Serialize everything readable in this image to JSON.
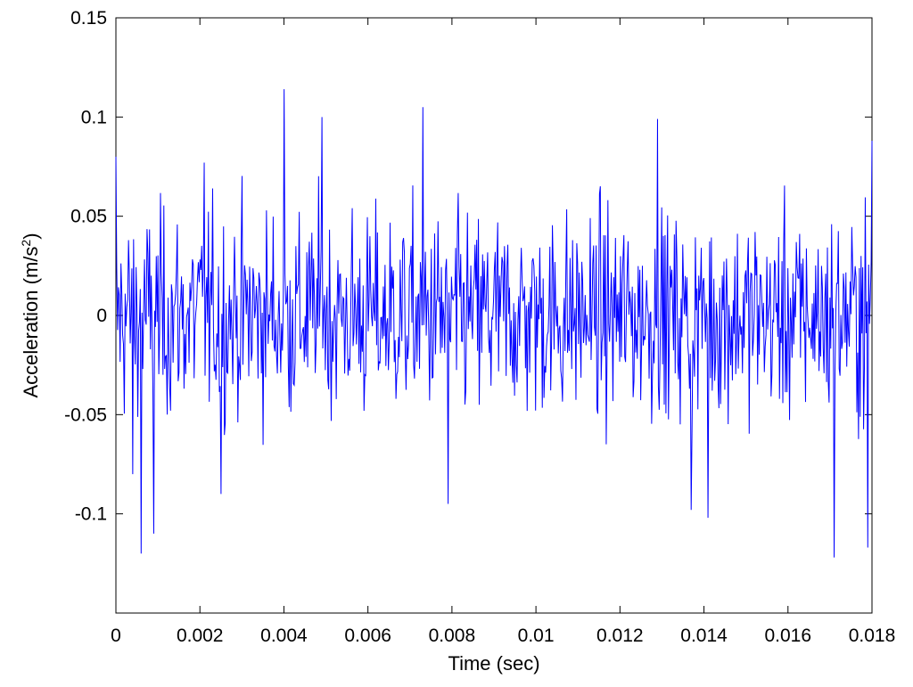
{
  "chart_data": {
    "type": "line",
    "title": "",
    "xlabel": "Time (sec)",
    "ylabel": {
      "text": "Acceleration (m/s",
      "superscript": "2",
      "suffix": ")"
    },
    "xlim": [
      0,
      0.018
    ],
    "ylim": [
      -0.15,
      0.15
    ],
    "xticks": [
      0,
      0.002,
      0.004,
      0.006,
      0.008,
      0.01,
      0.012,
      0.014,
      0.016,
      0.018
    ],
    "xtick_labels": [
      "0",
      "0.002",
      "0.004",
      "0.006",
      "0.008",
      "0.01",
      "0.012",
      "0.014",
      "0.016",
      "0.018"
    ],
    "yticks": [
      0.15,
      0.1,
      0.05,
      0,
      -0.05,
      -0.1
    ],
    "ytick_labels": [
      "0.15",
      "0.1",
      "0.05",
      "0",
      "-0.05",
      "-0.1"
    ],
    "grid": false,
    "series": [
      {
        "color": "#0000ff",
        "sample_count": 900,
        "approx_peak_range": [
          -0.12,
          0.114
        ],
        "x": [
          0,
          0.0004,
          0.0006,
          0.0009,
          0.0021,
          0.0025,
          0.004,
          0.0049,
          0.0073,
          0.0079,
          0.0129,
          0.0137,
          0.0141,
          0.0171,
          0.0179,
          0.018
        ],
        "values": [
          0.08,
          -0.08,
          -0.12,
          -0.11,
          0.077,
          -0.09,
          0.114,
          0.1,
          0.105,
          -0.095,
          0.099,
          -0.098,
          -0.102,
          -0.122,
          -0.117,
          0.088
        ]
      }
    ]
  }
}
